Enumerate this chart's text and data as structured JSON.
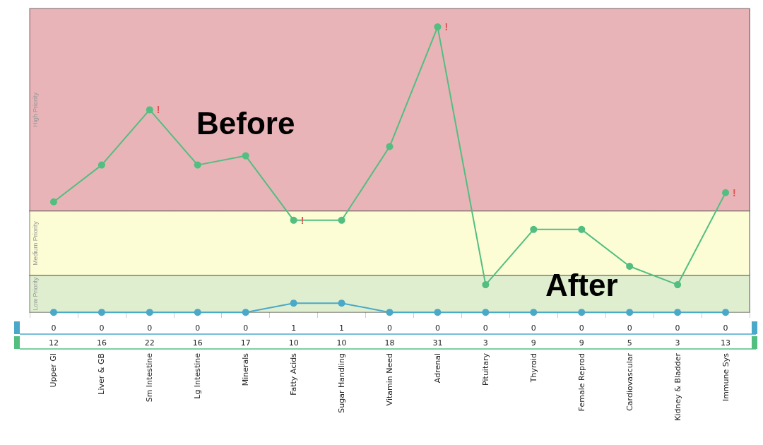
{
  "chart_data": {
    "type": "line",
    "grid": "x",
    "legend": false,
    "marker": "circle",
    "data_labels": true,
    "tick_labels": "x",
    "categories": [
      "Upper GI",
      "Liver & GB",
      "Sm Intestine",
      "Lg Intestine",
      "Minerals",
      "Fatty Acids",
      "Sugar Handling",
      "Vitamin Need",
      "Adrenal",
      "Pituitary",
      "Thyroid",
      "Female Reprod",
      "Cardiovascular",
      "Kidney & Bladder",
      "Immune Sys"
    ],
    "series": [
      {
        "name": "Before",
        "color": "#52be80",
        "values": [
          12,
          16,
          22,
          16,
          17,
          10,
          10,
          18,
          31,
          3,
          9,
          9,
          5,
          3,
          13
        ]
      },
      {
        "name": "After",
        "color": "#4aa8c8",
        "values": [
          0,
          0,
          0,
          0,
          0,
          1,
          1,
          0,
          0,
          0,
          0,
          0,
          0,
          0,
          0
        ]
      }
    ],
    "bands": [
      {
        "axis": "y",
        "from": 11,
        "to": 33,
        "label": "High Priority",
        "color": "#e8b4b8"
      },
      {
        "axis": "y",
        "from": 4,
        "to": 11,
        "label": "Medium Priority",
        "color": "#fdfdd5"
      },
      {
        "axis": "y",
        "from": 0,
        "to": 4,
        "label": "Low Priority",
        "color": "#e0eed0"
      }
    ],
    "annotations": [
      {
        "text": "!",
        "x": "Sm Intestine",
        "y": 22
      },
      {
        "text": "!",
        "x": "Fatty Acids",
        "y": 10
      },
      {
        "text": "!",
        "x": "Adrenal",
        "y": 31
      },
      {
        "text": "!",
        "x": "Immune Sys",
        "y": 13
      }
    ]
  }
}
